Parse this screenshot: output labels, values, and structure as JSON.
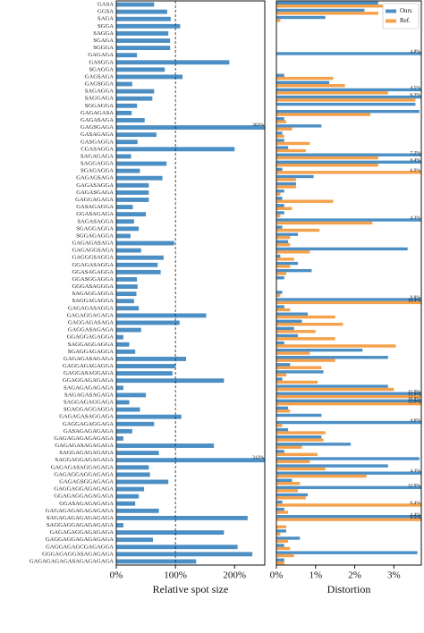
{
  "chart_data": [
    {
      "type": "barh",
      "xlabel": "Relative spot size",
      "categories": [
        "GASA",
        "GGSA",
        "SAGA",
        "SGGA",
        "SAGGA",
        "SGAGA",
        "SGGGA",
        "GAGAGA",
        "GASGGA",
        "SGAGGA",
        "GAGSAGA",
        "GAGSGGA",
        "SAGAGGA",
        "SAGGAGA",
        "SGGAGGA",
        "GAGAGASA",
        "GAGASAGA",
        "GAGSGAGA",
        "GASAGAGA",
        "GASGAGGA",
        "CGASAGGA",
        "SAGAGAGA",
        "SAGGAGGA",
        "SGAGAGGA",
        "GAGAGSAGA",
        "GAGASAGGA",
        "GAGASGAGA",
        "GAGGAGAGA",
        "GASAGAGGA",
        "GGASAGAGA",
        "SAGASAGGA",
        "SGAGGAGGA",
        "SGGAGAGGA",
        "GAGAGASAGA",
        "GAGAGGSAGA",
        "GAGGGSAGGA",
        "GGAGASAGGA",
        "GGASAGAGGA",
        "GGASGGAGGA",
        "GGGASAGGGA",
        "SAGAGGAGGA",
        "SAGGAGAGGA",
        "GAGAGASAGGA",
        "GAGAGGAGAGA",
        "GAGGAGASAGA",
        "GAGGASAGAGA",
        "GGAGGAGAGGA",
        "SAGGAGGAGGA",
        "SGAGGAGAGGA",
        "GAGAGASAGAGA",
        "GAGGAGAGAGGA",
        "GAGGASAGGAGA",
        "GGAGGAGAGAGA",
        "SAGAGAGAGAGA",
        "SAGAGASAGAGA",
        "SAGGAGAGGAGA",
        "SGAGGAGGAGGA",
        "GAGAGASAGGAGA",
        "GAGGAGAGGAGA",
        "GASAGAGAGAGA",
        "GAGAGAGAGAGAGA",
        "GAGAGASAGAGAGA",
        "SAGGAGAGAGAGA",
        "SAGGAGGAGAGAGA",
        "GAGAGASAGGAGAGA",
        "GAGAGGAGGAGAGA",
        "GAGAGSGGAGAGA",
        "GAGGAGGAGAGAGA",
        "GGAGAGGAGAGAGA",
        "GGASAGAGAGAGA",
        "GAGAGAGAGAGAGAGA",
        "SAGAGAGAGAGAGAGA",
        "SAGGAGGAGAGAGAGA",
        "GAGAGAGGAGAGAGA",
        "GAGGAGGAGAGAGAGA",
        "GAGGAGAGCGAGAGGA",
        "GGGAGAGGASAGAGAGA",
        "GAGAGAGAGASAGAGAGAGA"
      ],
      "series": [
        {
          "color": "#4c8fc4",
          "values": [
            64,
            86,
            92,
            108,
            88,
            91,
            91,
            35,
            191,
            82,
            112,
            27,
            64,
            61,
            35,
            26,
            48,
            363,
            68,
            36,
            200,
            25,
            85,
            40,
            78,
            55,
            55,
            55,
            28,
            50,
            30,
            38,
            24,
            98,
            42,
            80,
            70,
            75,
            35,
            36,
            34,
            30,
            38,
            152,
            107,
            42,
            12,
            22,
            32,
            118,
            100,
            95,
            182,
            12,
            50,
            22,
            40,
            110,
            64,
            27,
            12,
            165,
            72,
            312,
            55,
            57,
            88,
            47,
            38,
            32,
            72,
            222,
            12,
            182,
            62,
            205,
            230,
            135
          ],
          "value_labels": [
            null,
            null,
            null,
            null,
            null,
            null,
            null,
            null,
            null,
            null,
            null,
            null,
            null,
            null,
            null,
            null,
            null,
            "363%",
            null,
            null,
            null,
            null,
            null,
            null,
            null,
            null,
            null,
            null,
            null,
            null,
            null,
            null,
            null,
            null,
            null,
            null,
            null,
            null,
            null,
            null,
            null,
            null,
            null,
            null,
            null,
            null,
            null,
            null,
            null,
            null,
            null,
            null,
            null,
            null,
            null,
            null,
            null,
            null,
            null,
            null,
            null,
            null,
            null,
            "312%",
            null,
            null,
            null,
            null,
            null,
            null,
            null,
            null,
            null,
            null,
            null,
            null,
            null,
            null
          ]
        }
      ],
      "xlim": [
        0,
        251
      ],
      "refline": 100,
      "xticks": [
        {
          "value": 0,
          "label": "0%"
        },
        {
          "value": 100,
          "label": "100%"
        },
        {
          "value": 200,
          "label": "200%"
        }
      ]
    },
    {
      "type": "barh",
      "xlabel": "Distortion",
      "legend": "upper right",
      "series": [
        {
          "name": "Ours",
          "color": "#4c8fc4",
          "values": [
            2.6,
            2.25,
            1.25,
            null,
            null,
            null,
            null,
            4.8,
            null,
            null,
            0.2,
            1.35,
            4.5,
            6.3,
            3.55,
            3.65,
            0.2,
            1.15,
            0.15,
            0.2,
            0.3,
            7.2,
            6.4,
            0.15,
            0.95,
            0.5,
            0.2,
            0.15,
            0.2,
            0.2,
            4.3,
            0.15,
            0.55,
            0.3,
            3.35,
            0.1,
            0.55,
            0.9,
            0.2,
            null,
            0.15,
            9.8,
            0.2,
            0.8,
            0.65,
            0.45,
            0.55,
            0.2,
            2.2,
            2.85,
            0.35,
            1.2,
            0.15,
            2.85,
            11.9,
            10.8,
            0.3,
            1.15,
            4.6,
            0.3,
            1.15,
            1.9,
            0.2,
            3.65,
            2.85,
            4.3,
            0.4,
            12.9,
            0.8,
            0.15,
            0.2,
            4.4,
            null,
            0.25,
            0.6,
            0.2,
            3.6,
            0.2
          ],
          "value_labels": [
            null,
            null,
            null,
            null,
            null,
            null,
            null,
            "4.8%",
            null,
            null,
            null,
            null,
            "4.5%",
            "6.3%",
            null,
            null,
            null,
            null,
            null,
            null,
            null,
            "7.2%",
            "6.4%",
            null,
            null,
            null,
            null,
            null,
            null,
            null,
            "4.3%",
            null,
            null,
            null,
            null,
            null,
            null,
            null,
            null,
            null,
            null,
            "9.8%",
            null,
            null,
            null,
            null,
            null,
            null,
            null,
            null,
            null,
            null,
            null,
            null,
            "11.9%",
            "10.8%",
            null,
            null,
            "4.6%",
            null,
            null,
            null,
            null,
            null,
            null,
            "4.3%",
            null,
            "12.9%",
            null,
            null,
            null,
            "4.4%",
            null,
            null,
            null,
            null,
            null,
            null
          ]
        },
        {
          "name": "Ref.",
          "color": "#f5a04a",
          "values": [
            2.85,
            2.6,
            0.1,
            null,
            null,
            null,
            null,
            null,
            null,
            null,
            1.45,
            1.75,
            2.85,
            3.55,
            null,
            2.4,
            0.25,
            0.4,
            0.2,
            0.85,
            0.75,
            2.6,
            2.6,
            6.9,
            0.5,
            0.5,
            0.1,
            1.45,
            0.4,
            0.1,
            2.45,
            1.1,
            0.35,
            0.35,
            0.85,
            0.45,
            0.35,
            0.25,
            null,
            null,
            0.1,
            10.4,
            0.35,
            1.5,
            1.7,
            1.0,
            1.5,
            3.05,
            0.85,
            1.5,
            1.15,
            0.25,
            1.05,
            3.0,
            13.9,
            12.0,
            0.35,
            null,
            0.15,
            1.25,
            1.2,
            0.65,
            1.05,
            0.85,
            1.25,
            2.3,
            0.6,
            0.55,
            0.75,
            6.4,
            0.3,
            6.5,
            0.25,
            0.1,
            0.3,
            0.35,
            0.45,
            0.2
          ],
          "value_labels": [
            null,
            null,
            null,
            null,
            null,
            null,
            null,
            null,
            null,
            null,
            null,
            null,
            null,
            null,
            null,
            null,
            null,
            null,
            null,
            null,
            null,
            null,
            null,
            "6.9%",
            null,
            null,
            null,
            null,
            null,
            null,
            null,
            null,
            null,
            null,
            null,
            null,
            null,
            null,
            null,
            null,
            null,
            "10.4%",
            null,
            null,
            null,
            null,
            null,
            null,
            null,
            null,
            null,
            null,
            null,
            null,
            "13.9%",
            "12.0%",
            null,
            null,
            null,
            null,
            null,
            null,
            null,
            null,
            null,
            null,
            null,
            null,
            null,
            "6.4%",
            null,
            "6.5%",
            null,
            null,
            null,
            null,
            null,
            null
          ]
        }
      ],
      "xlim": [
        0,
        3.7
      ],
      "xticks": [
        {
          "value": 0,
          "label": "0%"
        },
        {
          "value": 1,
          "label": "1%"
        },
        {
          "value": 2,
          "label": "2%"
        },
        {
          "value": 3,
          "label": "3%"
        }
      ]
    }
  ]
}
